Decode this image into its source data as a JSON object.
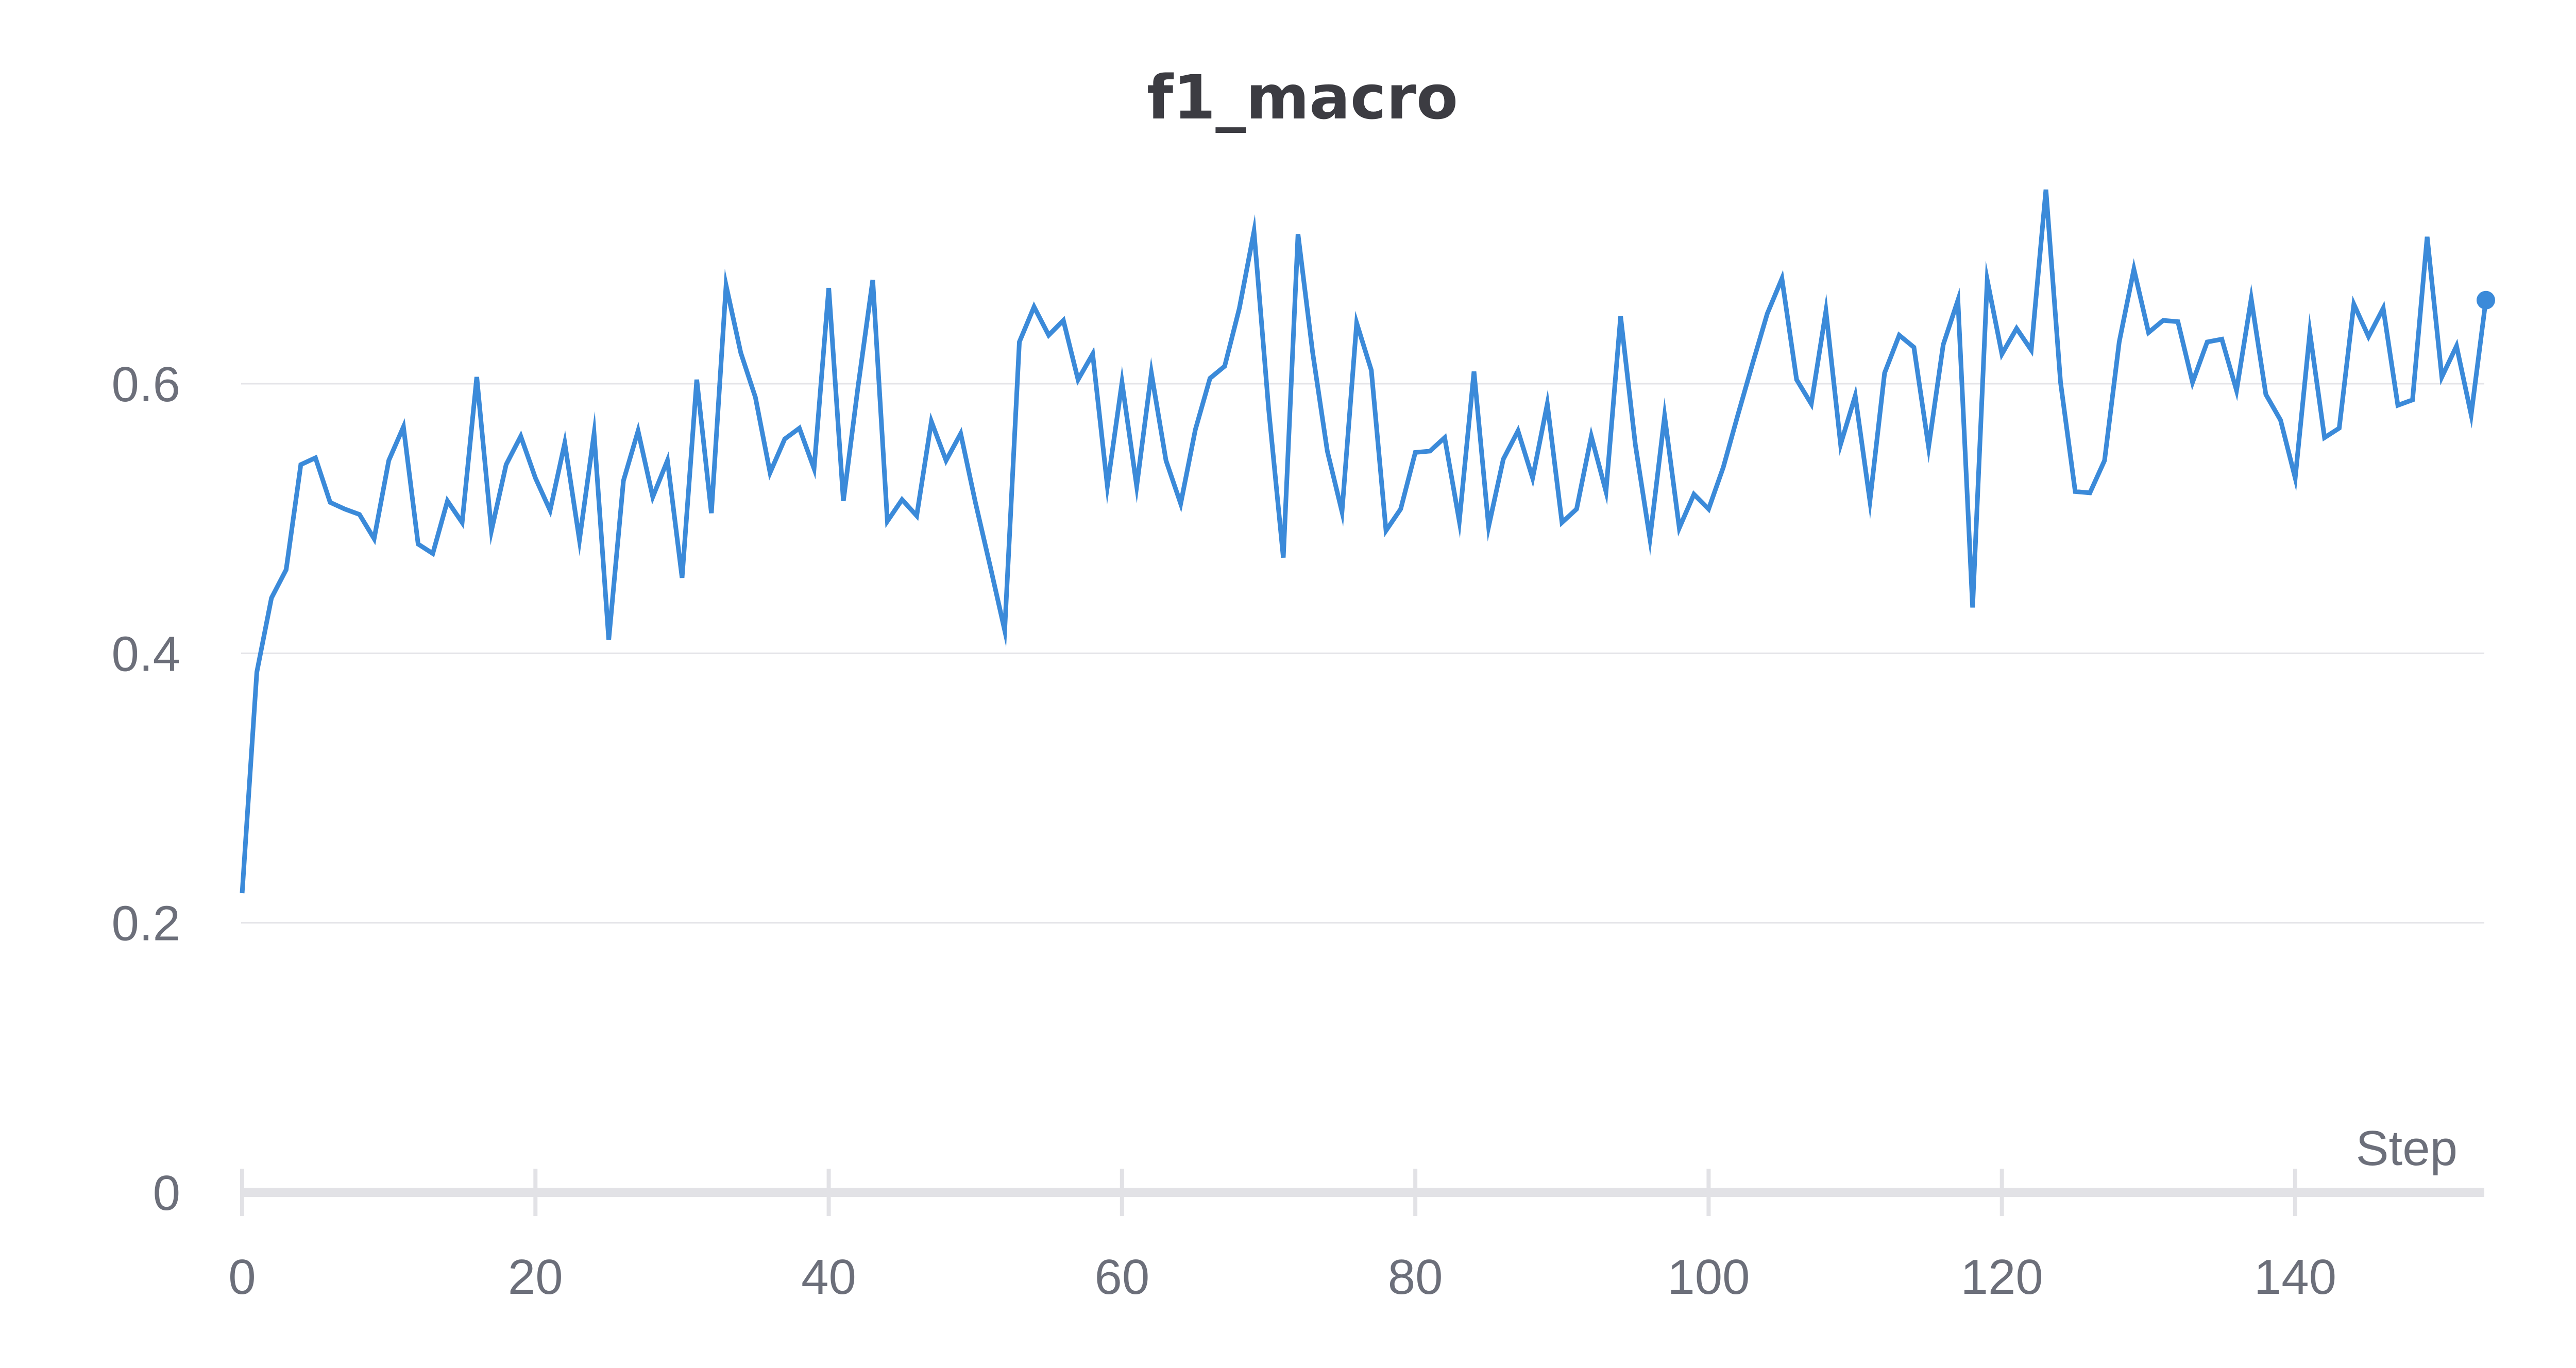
{
  "chart_data": {
    "type": "line",
    "title": "f1_macro",
    "xlabel": "Step",
    "ylabel": "",
    "xlim": [
      0,
      153
    ],
    "ylim": [
      0,
      0.75
    ],
    "x_ticks": [
      0,
      20,
      40,
      60,
      80,
      100,
      120,
      140
    ],
    "x_tick_labels": [
      "0",
      "20",
      "40",
      "60",
      "80",
      "100",
      "120",
      "140"
    ],
    "y_ticks": [
      0,
      0.2,
      0.4,
      0.6
    ],
    "y_tick_labels": [
      "0",
      "0.2",
      "0.4",
      "0.6"
    ],
    "grid": "horizontal",
    "legend": "none",
    "line_color": "#3b8ad9",
    "series": [
      {
        "x": [
          0,
          1,
          2,
          3,
          4,
          5,
          6,
          7,
          8,
          9,
          10,
          11,
          12,
          13,
          14,
          15,
          16,
          17,
          18,
          19,
          20,
          21,
          22,
          23,
          24,
          25,
          26,
          27,
          28,
          29,
          30,
          31,
          32,
          33,
          34,
          35,
          36,
          37,
          38,
          39,
          40,
          41,
          42,
          43,
          44,
          45,
          46,
          47,
          48,
          49,
          50,
          51,
          52,
          53,
          54,
          55,
          56,
          57,
          58,
          59,
          60,
          61,
          62,
          63,
          64,
          65,
          66,
          67,
          68,
          69,
          70,
          71,
          72,
          73,
          74,
          75,
          76,
          77,
          78,
          79,
          80,
          81,
          82,
          83,
          84,
          85,
          86,
          87,
          88,
          89,
          90,
          91,
          92,
          93,
          94,
          95,
          96,
          97,
          98,
          99,
          100,
          101,
          102,
          103,
          104,
          105,
          106,
          107,
          108,
          109,
          110,
          111,
          112,
          113,
          114,
          115,
          116,
          117,
          118,
          119,
          120,
          121,
          122,
          123,
          124,
          125,
          126,
          127,
          128,
          129,
          130,
          131,
          132,
          133,
          134,
          135,
          136,
          137,
          138,
          139,
          140,
          141,
          142,
          143,
          144,
          145,
          146,
          147,
          148,
          149,
          150,
          151,
          152,
          153
        ],
        "y": [
          0.222,
          0.386,
          0.441,
          0.462,
          0.54,
          0.545,
          0.512,
          0.507,
          0.503,
          0.485,
          0.543,
          0.568,
          0.481,
          0.474,
          0.513,
          0.497,
          0.605,
          0.491,
          0.54,
          0.561,
          0.53,
          0.506,
          0.556,
          0.484,
          0.563,
          0.41,
          0.528,
          0.565,
          0.516,
          0.543,
          0.456,
          0.603,
          0.504,
          0.673,
          0.623,
          0.59,
          0.534,
          0.559,
          0.567,
          0.537,
          0.671,
          0.513,
          0.598,
          0.677,
          0.498,
          0.514,
          0.502,
          0.572,
          0.543,
          0.563,
          0.512,
          0.465,
          0.417,
          0.631,
          0.657,
          0.636,
          0.647,
          0.603,
          0.622,
          0.524,
          0.601,
          0.524,
          0.608,
          0.543,
          0.511,
          0.566,
          0.604,
          0.613,
          0.656,
          0.713,
          0.581,
          0.471,
          0.711,
          0.623,
          0.55,
          0.505,
          0.645,
          0.61,
          0.491,
          0.507,
          0.549,
          0.55,
          0.56,
          0.498,
          0.609,
          0.494,
          0.544,
          0.565,
          0.53,
          0.585,
          0.497,
          0.507,
          0.561,
          0.52,
          0.65,
          0.555,
          0.485,
          0.576,
          0.493,
          0.518,
          0.507,
          0.538,
          0.577,
          0.615,
          0.652,
          0.678,
          0.603,
          0.585,
          0.654,
          0.555,
          0.591,
          0.513,
          0.608,
          0.636,
          0.627,
          0.553,
          0.629,
          0.662,
          0.434,
          0.677,
          0.622,
          0.641,
          0.625,
          0.744,
          0.601,
          0.52,
          0.519,
          0.543,
          0.631,
          0.685,
          0.638,
          0.647,
          0.646,
          0.601,
          0.631,
          0.633,
          0.595,
          0.663,
          0.592,
          0.573,
          0.53,
          0.638,
          0.56,
          0.567,
          0.659,
          0.635,
          0.656,
          0.584,
          0.588,
          0.709,
          0.605,
          0.628,
          0.577,
          0.662
        ]
      }
    ],
    "last_point_marker": true
  }
}
